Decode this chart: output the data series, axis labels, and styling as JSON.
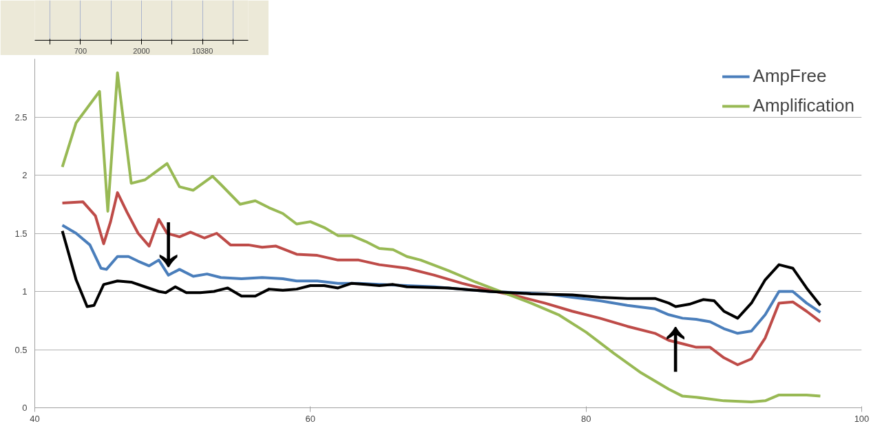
{
  "chart_data": [
    {
      "type": "other",
      "categories": [
        null,
        "700",
        null,
        "2000",
        null,
        "10380",
        null
      ]
    },
    {
      "type": "line",
      "xlim": [
        40,
        100
      ],
      "ylim": [
        0,
        3
      ],
      "xticks": [
        40,
        60,
        80,
        100
      ],
      "yticks": [
        0,
        0.5,
        1,
        1.5,
        2,
        2.5
      ],
      "grid": "y",
      "legend": "top right",
      "marker": "none",
      "line_style": "solid",
      "annotations": [
        {
          "text": "↓",
          "x": 49.7,
          "y": 1.14
        },
        {
          "text": "↑",
          "x": 86.5,
          "y": 0.87
        }
      ],
      "series": [
        {
          "name": "AmpFree",
          "color": "#4a7ebb",
          "x": [
            42,
            43,
            44,
            44.8,
            45.2,
            46,
            46.8,
            47.5,
            48.3,
            49,
            49.7,
            50.5,
            51.5,
            52.5,
            53.5,
            55,
            56.5,
            58,
            59,
            60.5,
            62,
            63.5,
            65,
            67,
            69,
            71,
            73,
            75,
            77,
            79,
            81,
            83,
            85,
            86,
            87,
            88,
            89,
            90,
            91,
            92,
            93,
            94,
            95,
            96,
            97
          ],
          "values": [
            1.57,
            1.5,
            1.4,
            1.2,
            1.19,
            1.3,
            1.3,
            1.26,
            1.22,
            1.27,
            1.14,
            1.19,
            1.13,
            1.15,
            1.12,
            1.11,
            1.12,
            1.11,
            1.09,
            1.09,
            1.07,
            1.07,
            1.06,
            1.05,
            1.04,
            1.02,
            1.0,
            0.99,
            0.98,
            0.95,
            0.92,
            0.88,
            0.85,
            0.8,
            0.77,
            0.76,
            0.74,
            0.68,
            0.64,
            0.66,
            0.8,
            1.0,
            1.0,
            0.9,
            0.82
          ]
        },
        {
          "color": "#be4b48",
          "x": [
            42,
            43.5,
            44.4,
            45,
            45.5,
            46,
            46.7,
            47.5,
            48.3,
            49,
            49.6,
            50.5,
            51.3,
            52.3,
            53.2,
            54.2,
            55.5,
            56.5,
            57.5,
            59,
            60.5,
            62,
            63.5,
            65,
            67,
            69,
            71,
            73,
            75,
            77,
            79,
            81,
            83,
            85,
            86,
            87,
            88,
            89,
            90,
            91,
            92,
            93,
            94,
            95,
            96,
            97
          ],
          "values": [
            1.76,
            1.77,
            1.65,
            1.41,
            1.6,
            1.85,
            1.68,
            1.5,
            1.39,
            1.62,
            1.5,
            1.47,
            1.51,
            1.46,
            1.5,
            1.4,
            1.4,
            1.38,
            1.39,
            1.32,
            1.31,
            1.27,
            1.27,
            1.23,
            1.2,
            1.14,
            1.07,
            1.01,
            0.96,
            0.9,
            0.83,
            0.77,
            0.7,
            0.64,
            0.58,
            0.55,
            0.52,
            0.52,
            0.43,
            0.37,
            0.42,
            0.6,
            0.9,
            0.91,
            0.83,
            0.74
          ]
        },
        {
          "name": "Amplification",
          "color": "#98b954",
          "x": [
            42,
            43,
            44.7,
            45.3,
            46,
            47,
            48,
            49.6,
            50.5,
            51.5,
            52.9,
            53.5,
            54.9,
            56,
            57,
            58,
            59,
            60,
            61,
            62,
            63,
            64,
            65,
            66,
            67,
            68,
            70,
            72,
            74,
            76,
            78,
            80,
            82,
            84,
            86,
            87,
            88,
            90,
            92,
            93,
            94,
            96,
            97
          ],
          "values": [
            2.07,
            2.45,
            2.72,
            1.69,
            2.88,
            1.93,
            1.96,
            2.1,
            1.9,
            1.87,
            1.99,
            1.92,
            1.75,
            1.78,
            1.72,
            1.67,
            1.58,
            1.6,
            1.55,
            1.48,
            1.48,
            1.43,
            1.37,
            1.36,
            1.3,
            1.27,
            1.18,
            1.08,
            0.99,
            0.9,
            0.8,
            0.65,
            0.47,
            0.3,
            0.16,
            0.1,
            0.09,
            0.06,
            0.05,
            0.06,
            0.11,
            0.11,
            0.1
          ]
        },
        {
          "color": "#000000",
          "x": [
            42,
            43,
            43.8,
            44.3,
            45,
            46,
            47,
            48,
            49,
            49.5,
            50.2,
            51,
            52,
            53,
            54,
            55,
            56,
            57,
            58,
            59,
            60,
            61,
            62,
            63,
            64,
            65,
            66,
            67,
            70,
            73,
            76,
            79,
            81,
            83,
            85,
            86,
            86.5,
            87.5,
            88.5,
            89.3,
            90,
            91,
            92,
            93,
            94,
            95,
            96,
            97
          ],
          "values": [
            1.52,
            1.1,
            0.87,
            0.88,
            1.06,
            1.09,
            1.08,
            1.04,
            1.0,
            0.99,
            1.04,
            0.99,
            0.99,
            1.0,
            1.03,
            0.96,
            0.96,
            1.02,
            1.01,
            1.02,
            1.05,
            1.05,
            1.03,
            1.07,
            1.06,
            1.05,
            1.06,
            1.04,
            1.03,
            1.0,
            0.98,
            0.97,
            0.95,
            0.94,
            0.94,
            0.9,
            0.87,
            0.89,
            0.93,
            0.92,
            0.83,
            0.77,
            0.9,
            1.1,
            1.23,
            1.2,
            1.03,
            0.88
          ]
        }
      ]
    }
  ]
}
